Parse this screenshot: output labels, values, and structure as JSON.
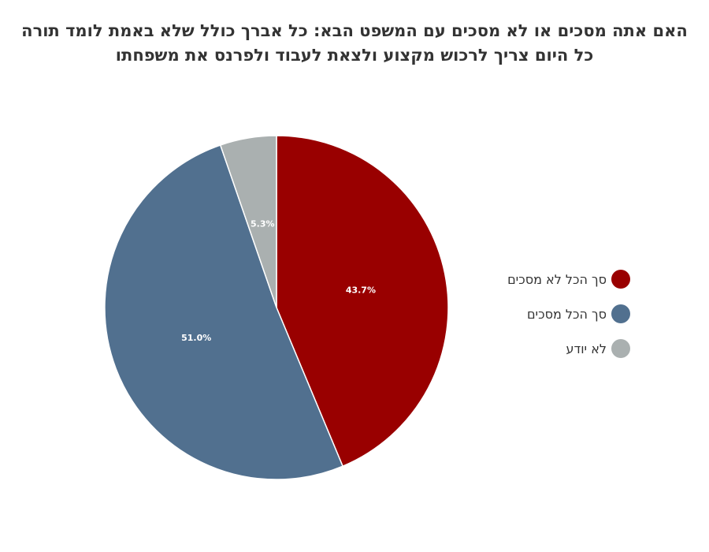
{
  "chart_data": {
    "type": "pie",
    "title": "האם אתה מסכים או לא מסכים עם המשפט הבא: כל אברך כולל שלא באמת לומד תורה כל היום צריך לרכוש מקצוע ולצאת לעבוד ולפרנס את משפחתו",
    "categories": [
      "סך הכל לא מסכים",
      "סך הכל מסכים",
      "לא יודע"
    ],
    "values": [
      43.7,
      51.0,
      5.3
    ],
    "value_labels": [
      "43.7%",
      "51.0%",
      "5.3%"
    ],
    "colors": [
      "#990000",
      "#51708f",
      "#aab0b0"
    ],
    "legend_position": "right",
    "start_angle": "12 o'clock",
    "direction": "clockwise"
  }
}
